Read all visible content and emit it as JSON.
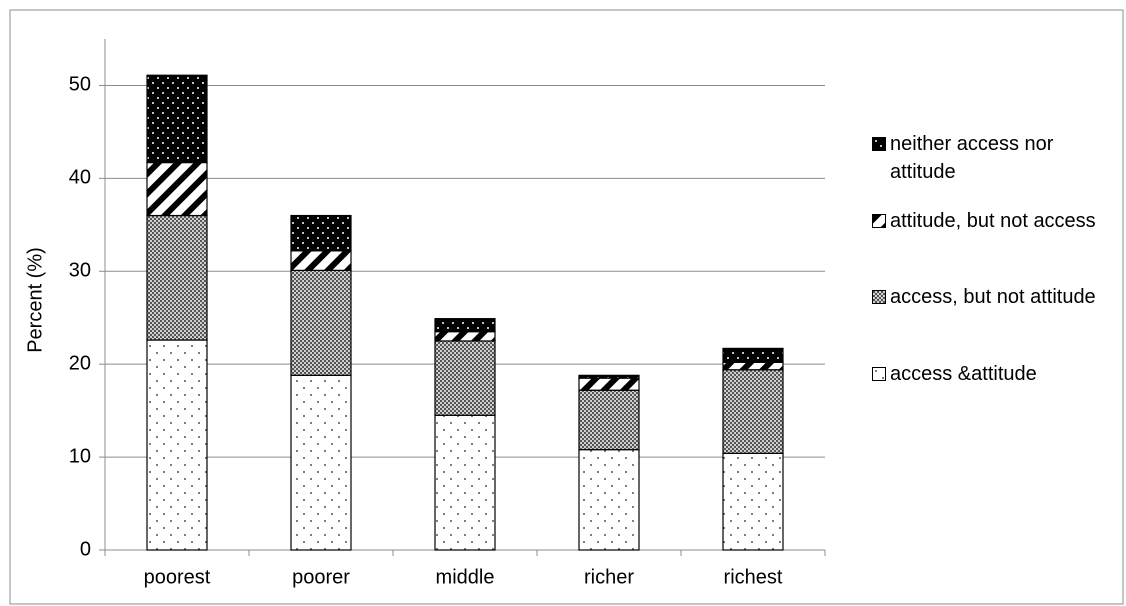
{
  "chart_data": {
    "type": "stacked_bar",
    "y_label": "Percent (%)",
    "categories": [
      "poorest",
      "poorer",
      "middle",
      "richer",
      "richest"
    ],
    "series": [
      {
        "name": "access &attitude",
        "color": "#ffffff",
        "pattern": "dots",
        "values": [
          22.6,
          18.8,
          14.5,
          10.8,
          10.4
        ]
      },
      {
        "name": "access, but not attitude",
        "color": "#a6a6a6",
        "pattern": "crosshatch",
        "values": [
          13.4,
          11.3,
          8.0,
          6.4,
          9.0
        ]
      },
      {
        "name": "attitude, but not access",
        "color": "#ffffff",
        "pattern": "stripes",
        "values": [
          5.7,
          2.1,
          1.0,
          1.3,
          0.8
        ]
      },
      {
        "name": "neither access nor attitude",
        "color": "#000000",
        "pattern": "darkdots",
        "values": [
          9.4,
          3.8,
          1.4,
          0.3,
          1.5
        ]
      }
    ],
    "ylim": [
      0,
      55
    ],
    "yticks": [
      0,
      10,
      20,
      30,
      40,
      50
    ],
    "grid": true,
    "legend": "right"
  }
}
